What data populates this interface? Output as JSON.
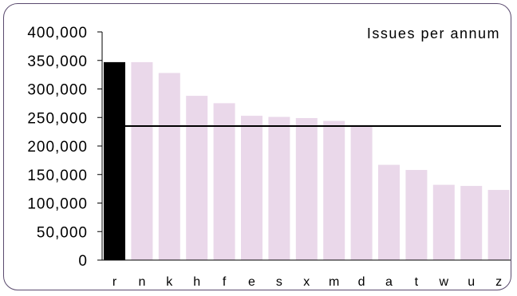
{
  "chart_data": {
    "type": "bar",
    "title": "Issues per annum",
    "xlabel": "",
    "ylabel": "",
    "ylim": [
      0,
      400000
    ],
    "yticks": [
      0,
      50000,
      100000,
      150000,
      200000,
      250000,
      300000,
      350000,
      400000
    ],
    "ytick_labels": [
      "0",
      "50,000",
      "100,000",
      "150,000",
      "200,000",
      "250,000",
      "300,000",
      "350,000",
      "400,000"
    ],
    "categories": [
      "r",
      "n",
      "k",
      "h",
      "f",
      "e",
      "s",
      "x",
      "m",
      "d",
      "a",
      "t",
      "w",
      "u",
      "z"
    ],
    "values": [
      347000,
      347000,
      328000,
      288000,
      275000,
      253000,
      251000,
      249000,
      244000,
      234000,
      167000,
      158000,
      132000,
      130000,
      123000
    ],
    "highlight_category": "r",
    "highlight_color": "#000000",
    "bar_color": "#ead8ea",
    "reference_line": {
      "value": 235000,
      "color": "#000000"
    },
    "grid": false,
    "legend": "none"
  }
}
